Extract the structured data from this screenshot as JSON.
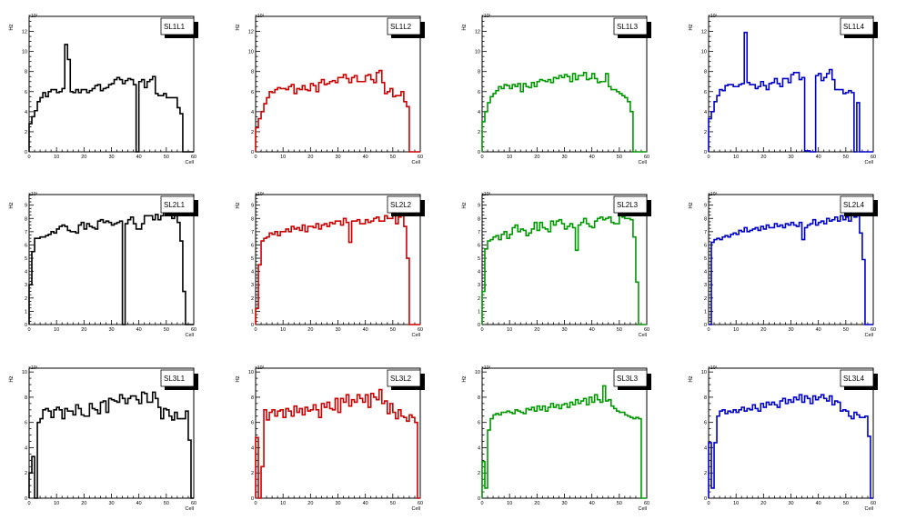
{
  "canvas_title": "",
  "chart_data": [
    {
      "type": "bar",
      "title": "SL1L1",
      "xlabel": "Cell",
      "ylabel": "Hz",
      "y_exponent": "×10³",
      "xlim": [
        0,
        60
      ],
      "ylim": [
        0,
        13.5
      ],
      "yticks": [
        0,
        2,
        4,
        6,
        8,
        10,
        12
      ],
      "xticks": [
        0,
        10,
        20,
        30,
        40,
        50,
        60
      ],
      "color": "#000000",
      "values": [
        2.8,
        3.5,
        4.1,
        5.0,
        5.4,
        5.9,
        5.5,
        6.0,
        6.2,
        6.2,
        5.9,
        6.0,
        6.3,
        10.7,
        9.2,
        6.0,
        5.9,
        6.2,
        5.9,
        6.2,
        6.2,
        5.9,
        6.1,
        6.3,
        6.6,
        6.7,
        6.1,
        6.3,
        6.4,
        6.7,
        6.8,
        7.2,
        7.4,
        7.2,
        6.8,
        7.1,
        7.3,
        7.2,
        6.7,
        0,
        7.0,
        7.2,
        6.4,
        7.0,
        7.2,
        7.5,
        5.8,
        5.6,
        5.6,
        5.8,
        5.4,
        5.4,
        5.4,
        5.4,
        4.4,
        3.8,
        0,
        0,
        0,
        0
      ]
    },
    {
      "type": "bar",
      "title": "SL1L2",
      "xlabel": "Cell",
      "ylabel": "Hz",
      "y_exponent": "×10³",
      "xlim": [
        0,
        60
      ],
      "ylim": [
        0,
        13.5
      ],
      "yticks": [
        0,
        2,
        4,
        6,
        8,
        10,
        12
      ],
      "xticks": [
        0,
        10,
        20,
        30,
        40,
        50,
        60
      ],
      "color": "#cc0000",
      "values": [
        2.4,
        3.3,
        4.0,
        4.8,
        5.4,
        6.0,
        5.9,
        6.2,
        6.4,
        6.3,
        6.3,
        6.2,
        6.5,
        6.7,
        5.8,
        6.3,
        6.2,
        6.6,
        6.2,
        6.1,
        6.8,
        6.6,
        6.0,
        6.9,
        7.2,
        6.7,
        6.8,
        7.0,
        7.1,
        6.9,
        7.4,
        7.4,
        7.7,
        7.3,
        6.9,
        7.4,
        7.6,
        7.0,
        7.0,
        7.0,
        7.6,
        7.7,
        7.2,
        6.9,
        7.9,
        8.1,
        6.9,
        5.8,
        6.0,
        6.3,
        5.5,
        5.6,
        5.6,
        6.0,
        5.0,
        4.5,
        0,
        0,
        0,
        0
      ]
    },
    {
      "type": "bar",
      "title": "SL1L3",
      "xlabel": "Cell",
      "ylabel": "Hz",
      "y_exponent": "×10³",
      "xlim": [
        0,
        60
      ],
      "ylim": [
        0,
        13.5
      ],
      "yticks": [
        0,
        2,
        4,
        6,
        8,
        10,
        12
      ],
      "xticks": [
        0,
        10,
        20,
        30,
        40,
        50,
        60
      ],
      "color": "#009900",
      "values": [
        3.0,
        4.0,
        4.9,
        5.5,
        5.8,
        6.1,
        6.5,
        6.3,
        6.7,
        6.6,
        6.3,
        6.7,
        6.5,
        6.8,
        6.0,
        6.8,
        6.5,
        6.4,
        6.9,
        6.5,
        7.0,
        7.2,
        7.1,
        7.0,
        7.2,
        6.9,
        7.4,
        7.3,
        7.6,
        7.4,
        7.7,
        7.5,
        7.0,
        7.8,
        7.2,
        7.6,
        7.6,
        7.9,
        7.2,
        7.3,
        7.8,
        7.3,
        6.9,
        7.0,
        7.0,
        7.8,
        6.5,
        6.2,
        6.2,
        6.0,
        5.8,
        5.6,
        5.4,
        5.0,
        4.0,
        0,
        0,
        0,
        0,
        0
      ]
    },
    {
      "type": "bar",
      "title": "SL1L4",
      "xlabel": "Cell",
      "ylabel": "Hz",
      "y_exponent": "×10³",
      "xlim": [
        0,
        60
      ],
      "ylim": [
        0,
        13.5
      ],
      "yticks": [
        0,
        2,
        4,
        6,
        8,
        10,
        12
      ],
      "xticks": [
        0,
        10,
        20,
        30,
        40,
        50,
        60
      ],
      "color": "#0000cc",
      "values": [
        3.3,
        4.0,
        5.0,
        5.6,
        6.2,
        6.1,
        6.6,
        6.7,
        6.7,
        6.5,
        6.5,
        6.7,
        6.8,
        11.9,
        6.9,
        6.7,
        6.7,
        6.3,
        6.5,
        7.0,
        6.6,
        6.2,
        6.8,
        6.9,
        7.3,
        6.8,
        6.5,
        7.3,
        7.3,
        6.9,
        7.7,
        7.9,
        7.9,
        7.2,
        7.4,
        0.1,
        0.1,
        0,
        0,
        7.6,
        7.8,
        7.1,
        7.4,
        7.8,
        8.2,
        7.2,
        6.2,
        6.2,
        6.2,
        5.8,
        5.9,
        6.1,
        5.9,
        0,
        4.9,
        0,
        0,
        0,
        0,
        0
      ]
    },
    {
      "type": "bar",
      "title": "SL2L1",
      "xlabel": "Cell",
      "ylabel": "Hz",
      "y_exponent": "×10³",
      "xlim": [
        0,
        60
      ],
      "ylim": [
        0,
        9.8
      ],
      "yticks": [
        0,
        1,
        2,
        3,
        4,
        5,
        6,
        7,
        8,
        9
      ],
      "xticks": [
        0,
        10,
        20,
        30,
        40,
        50,
        60
      ],
      "color": "#000000",
      "values": [
        3.0,
        5.5,
        6.5,
        6.5,
        6.6,
        6.6,
        6.7,
        6.8,
        7.0,
        6.9,
        7.2,
        7.4,
        7.5,
        7.4,
        7.1,
        7.0,
        7.0,
        6.9,
        7.5,
        7.7,
        7.2,
        7.6,
        7.4,
        7.3,
        7.2,
        7.8,
        7.9,
        7.7,
        7.8,
        7.7,
        7.5,
        7.6,
        7.7,
        7.8,
        0,
        7.6,
        7.9,
        8.1,
        7.6,
        7.2,
        7.2,
        7.6,
        8.2,
        8.2,
        8.2,
        7.9,
        8.3,
        7.9,
        8.2,
        8.6,
        8.7,
        8.4,
        8.0,
        8.2,
        7.7,
        6.3,
        2.5,
        0,
        0,
        0
      ]
    },
    {
      "type": "bar",
      "title": "SL2L2",
      "xlabel": "Cell",
      "ylabel": "Hz",
      "y_exponent": "×10³",
      "xlim": [
        0,
        60
      ],
      "ylim": [
        0,
        9.8
      ],
      "yticks": [
        0,
        1,
        2,
        3,
        4,
        5,
        6,
        7,
        8,
        9
      ],
      "xticks": [
        0,
        10,
        20,
        30,
        40,
        50,
        60
      ],
      "color": "#cc0000",
      "values": [
        1.2,
        4.5,
        6.3,
        6.5,
        6.6,
        6.9,
        6.8,
        7.0,
        6.7,
        7.0,
        7.0,
        7.2,
        7.0,
        7.4,
        7.2,
        7.3,
        7.1,
        7.5,
        7.0,
        7.4,
        7.4,
        7.3,
        7.6,
        7.2,
        7.5,
        7.6,
        7.4,
        7.7,
        7.6,
        7.8,
        7.8,
        7.5,
        8.0,
        7.7,
        6.2,
        7.8,
        7.8,
        7.9,
        7.6,
        7.6,
        7.9,
        7.7,
        7.8,
        8.0,
        8.1,
        7.8,
        7.8,
        8.2,
        8.0,
        8.0,
        8.3,
        7.6,
        8.1,
        8.2,
        7.4,
        5.0,
        0,
        0,
        0,
        0
      ]
    },
    {
      "type": "bar",
      "title": "SL2L3",
      "xlabel": "Cell",
      "ylabel": "Hz",
      "y_exponent": "×10³",
      "xlim": [
        0,
        60
      ],
      "ylim": [
        0,
        9.8
      ],
      "yticks": [
        0,
        1,
        2,
        3,
        4,
        5,
        6,
        7,
        8,
        9
      ],
      "xticks": [
        0,
        10,
        20,
        30,
        40,
        50,
        60
      ],
      "color": "#009900",
      "values": [
        2.5,
        5.7,
        6.3,
        6.4,
        6.6,
        6.7,
        6.4,
        6.8,
        7.0,
        6.5,
        6.8,
        7.3,
        7.5,
        7.0,
        7.2,
        7.1,
        6.7,
        6.9,
        7.2,
        7.7,
        7.1,
        7.7,
        7.3,
        7.2,
        7.0,
        7.8,
        7.5,
        7.8,
        7.9,
        7.6,
        7.2,
        7.4,
        7.6,
        7.3,
        5.6,
        7.5,
        7.7,
        8.0,
        7.6,
        7.4,
        7.3,
        7.8,
        8.0,
        8.1,
        7.9,
        8.0,
        8.1,
        7.7,
        7.6,
        7.6,
        8.3,
        8.1,
        8.0,
        8.0,
        7.9,
        6.6,
        3.2,
        0,
        0,
        0
      ]
    },
    {
      "type": "bar",
      "title": "SL2L4",
      "xlabel": "Cell",
      "ylabel": "Hz",
      "y_exponent": "×10³",
      "xlim": [
        0,
        60
      ],
      "ylim": [
        0,
        9.8
      ],
      "yticks": [
        0,
        1,
        2,
        3,
        4,
        5,
        6,
        7,
        8,
        9
      ],
      "xticks": [
        0,
        10,
        20,
        30,
        40,
        50,
        60
      ],
      "color": "#0000cc",
      "values": [
        0,
        6.2,
        6.4,
        6.5,
        6.4,
        6.6,
        6.7,
        6.6,
        6.8,
        6.9,
        6.8,
        7.1,
        7.0,
        7.3,
        7.0,
        7.1,
        7.2,
        7.3,
        7.1,
        7.4,
        7.2,
        7.5,
        7.3,
        7.3,
        7.6,
        7.4,
        7.5,
        7.3,
        7.6,
        7.5,
        7.7,
        7.5,
        7.4,
        7.7,
        6.4,
        7.3,
        7.5,
        7.6,
        7.9,
        7.5,
        7.7,
        7.8,
        7.6,
        8.0,
        7.8,
        7.9,
        8.1,
        7.8,
        8.2,
        7.9,
        8.1,
        7.8,
        8.3,
        8.1,
        8.2,
        6.9,
        4.9,
        0,
        0,
        0
      ]
    },
    {
      "type": "bar",
      "title": "SL3L1",
      "xlabel": "Cell",
      "ylabel": "Hz",
      "y_exponent": "×10³",
      "xlim": [
        0,
        60
      ],
      "ylim": [
        0,
        10.3
      ],
      "yticks": [
        0,
        2,
        4,
        6,
        8,
        10
      ],
      "xticks": [
        0,
        10,
        20,
        30,
        40,
        50,
        60
      ],
      "color": "#000000",
      "values": [
        2.0,
        3.3,
        0,
        6.0,
        6.3,
        7.0,
        7.1,
        6.9,
        6.4,
        7.0,
        7.2,
        7.0,
        6.3,
        7.1,
        6.9,
        6.9,
        6.6,
        7.4,
        7.1,
        6.6,
        6.5,
        6.5,
        7.5,
        7.1,
        7.0,
        6.7,
        7.6,
        7.7,
        6.8,
        7.9,
        7.8,
        7.7,
        7.6,
        8.2,
        7.9,
        7.5,
        7.9,
        8.1,
        8.1,
        7.8,
        7.5,
        8.4,
        8.3,
        7.6,
        7.6,
        8.4,
        7.9,
        7.2,
        6.3,
        7.1,
        7.0,
        6.5,
        6.2,
        6.8,
        6.3,
        6.3,
        6.3,
        6.9,
        4.6,
        0
      ]
    },
    {
      "type": "bar",
      "title": "SL3L2",
      "xlabel": "Cell",
      "ylabel": "Hz",
      "y_exponent": "×10³",
      "xlim": [
        0,
        60
      ],
      "ylim": [
        0,
        10.3
      ],
      "yticks": [
        0,
        2,
        4,
        6,
        8,
        10
      ],
      "xticks": [
        0,
        10,
        20,
        30,
        40,
        50,
        60
      ],
      "color": "#cc0000",
      "values": [
        4.8,
        0,
        2.5,
        7.0,
        6.2,
        6.8,
        7.0,
        6.5,
        6.9,
        7.0,
        6.4,
        7.1,
        6.9,
        6.5,
        7.3,
        6.8,
        7.1,
        6.6,
        7.2,
        6.9,
        7.0,
        7.4,
        7.0,
        6.4,
        7.5,
        7.2,
        7.6,
        7.1,
        7.0,
        7.9,
        6.8,
        7.9,
        7.6,
        8.2,
        7.3,
        7.8,
        7.6,
        8.2,
        7.9,
        7.6,
        8.2,
        7.2,
        8.3,
        8.0,
        7.8,
        8.6,
        7.5,
        7.7,
        6.7,
        7.5,
        6.8,
        6.3,
        7.0,
        6.5,
        6.4,
        6.1,
        6.6,
        6.4,
        6.0,
        0
      ]
    },
    {
      "type": "bar",
      "title": "SL3L3",
      "xlabel": "Cell",
      "ylabel": "Hz",
      "y_exponent": "×10³",
      "xlim": [
        0,
        60
      ],
      "ylim": [
        0,
        10.3
      ],
      "yticks": [
        0,
        2,
        4,
        6,
        8,
        10
      ],
      "xticks": [
        0,
        10,
        20,
        30,
        40,
        50,
        60
      ],
      "color": "#009900",
      "values": [
        2.9,
        0.8,
        5.4,
        6.3,
        6.6,
        6.7,
        6.6,
        6.8,
        6.8,
        6.9,
        6.8,
        6.7,
        7.0,
        6.9,
        6.8,
        6.7,
        7.1,
        7.0,
        7.2,
        6.9,
        7.3,
        7.0,
        7.3,
        6.9,
        7.2,
        7.5,
        7.2,
        7.4,
        7.1,
        7.4,
        7.5,
        7.2,
        7.6,
        7.4,
        7.8,
        7.5,
        7.7,
        7.9,
        7.4,
        8.0,
        7.6,
        8.2,
        7.8,
        7.6,
        8.9,
        7.7,
        7.8,
        7.3,
        7.1,
        6.9,
        6.8,
        6.8,
        6.6,
        6.5,
        6.4,
        6.3,
        6.4,
        6.3,
        0,
        0
      ]
    },
    {
      "type": "bar",
      "title": "SL3L4",
      "xlabel": "Cell",
      "ylabel": "Hz",
      "y_exponent": "×10³",
      "xlim": [
        0,
        60
      ],
      "ylim": [
        0,
        10.3
      ],
      "yticks": [
        0,
        2,
        4,
        6,
        8,
        10
      ],
      "xticks": [
        0,
        10,
        20,
        30,
        40,
        50,
        60
      ],
      "color": "#0000cc",
      "values": [
        4.4,
        0.8,
        4.4,
        6.5,
        6.9,
        7.0,
        6.7,
        6.9,
        6.8,
        7.0,
        6.8,
        7.0,
        7.2,
        6.9,
        7.1,
        7.0,
        7.4,
        7.1,
        6.9,
        7.5,
        7.2,
        7.6,
        7.4,
        7.6,
        7.4,
        7.2,
        7.7,
        7.9,
        7.5,
        7.8,
        7.6,
        8.0,
        7.8,
        8.2,
        7.6,
        8.1,
        7.9,
        7.5,
        8.1,
        7.8,
        8.0,
        8.2,
        7.9,
        7.7,
        8.1,
        7.4,
        7.7,
        7.6,
        6.9,
        7.0,
        6.9,
        6.5,
        6.3,
        6.8,
        6.6,
        6.4,
        6.4,
        6.5,
        4.9,
        0
      ]
    }
  ]
}
